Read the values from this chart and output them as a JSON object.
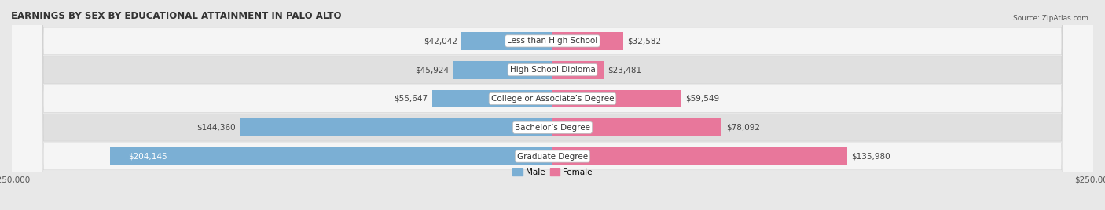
{
  "title": "EARNINGS BY SEX BY EDUCATIONAL ATTAINMENT IN PALO ALTO",
  "source": "Source: ZipAtlas.com",
  "categories": [
    "Less than High School",
    "High School Diploma",
    "College or Associate’s Degree",
    "Bachelor’s Degree",
    "Graduate Degree"
  ],
  "male_values": [
    42042,
    45924,
    55647,
    144360,
    204145
  ],
  "female_values": [
    32582,
    23481,
    59549,
    78092,
    135980
  ],
  "male_color": "#7bafd4",
  "female_color": "#e8779b",
  "max_value": 250000,
  "bar_height": 0.62,
  "bg_color": "#e8e8e8",
  "row_colors": [
    "#f5f5f5",
    "#e0e0e0"
  ],
  "title_fontsize": 8.5,
  "label_fontsize": 7.5,
  "value_fontsize": 7.5,
  "source_fontsize": 6.5
}
